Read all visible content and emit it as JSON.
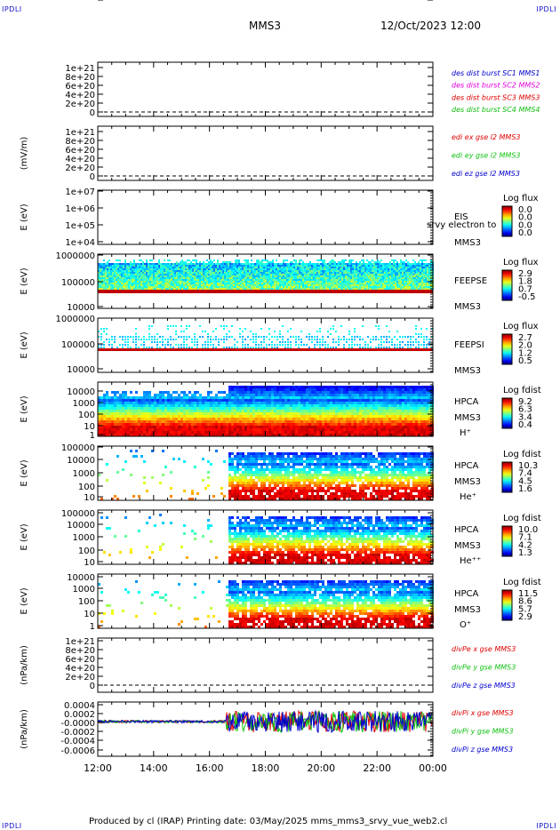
{
  "corners": {
    "tl": "IPDLI",
    "tr": "IPDLI",
    "bl": "IPDLI",
    "br": "IPDLI"
  },
  "header": {
    "spacecraft": "MMS3",
    "datetime": "12/Oct/2023 12:00"
  },
  "footer": {
    "text": "Produced by cl (IRAP)   Printing date: 03/May/2025   mms_mms3_srvy_vue_web2.cl"
  },
  "colors": {
    "red": "#e00000",
    "magenta": "#e000e0",
    "green": "#10c010",
    "blue": "#0000d0",
    "dash": "#000000"
  },
  "chart_data": {
    "type": "multi-panel",
    "x_axis": {
      "ticks": [
        "12:00",
        "14:00",
        "16:00",
        "18:00",
        "20:00",
        "22:00",
        "00:00"
      ],
      "range_hours": [
        12,
        24
      ]
    },
    "panels": [
      {
        "id": "p1",
        "ylabel": "",
        "yticks": [
          "1e+21",
          "8e+20",
          "6e+20",
          "4e+20",
          "2e+20",
          "0"
        ],
        "dashed_zero": true,
        "legend": [
          {
            "text": "des dist burst SC1 MMS1",
            "color": "#0000d0"
          },
          {
            "text": "des dist burst SC2 MMS2",
            "color": "#e000e0"
          },
          {
            "text": "des dist burst SC3 MMS3",
            "color": "#e00000"
          },
          {
            "text": "des dist burst SC4 MMS4",
            "color": "#10c010"
          }
        ]
      },
      {
        "id": "p2",
        "ylabel": "(mV/m)",
        "yticks": [
          "1e+21",
          "8e+20",
          "6e+20",
          "4e+20",
          "2e+20",
          "0"
        ],
        "dashed_zero": true,
        "legend": [
          {
            "text": "edi ex gse l2 MMS3",
            "color": "#e00000"
          },
          {
            "text": "edi ey gse l2 MMS3",
            "color": "#10c010"
          },
          {
            "text": "edi ez gse l2 MMS3",
            "color": "#0000d0"
          }
        ]
      },
      {
        "id": "p3",
        "ylabel": "E (eV)",
        "yticks": [
          "1e+07",
          "1e+06",
          "1e+05",
          "1e+04"
        ],
        "kind": "empty",
        "labels": [
          "EIS",
          "srvy electron to",
          "MMS3"
        ],
        "cbar_title": "Log flux",
        "cbar_ticks": [
          "0.0",
          "0.0",
          "0.0",
          "0.0"
        ]
      },
      {
        "id": "p4",
        "ylabel": "E (eV)",
        "yticks": [
          "1000000",
          "100000",
          "10000"
        ],
        "kind": "feepse",
        "labels": [
          "FEEPSE",
          "MMS3"
        ],
        "cbar_title": "Log flux",
        "cbar_ticks": [
          "2.9",
          "1.8",
          "0.7",
          "-0.5"
        ]
      },
      {
        "id": "p5",
        "ylabel": "E (eV)",
        "yticks": [
          "1000000",
          "100000",
          "10000"
        ],
        "kind": "feepsi",
        "labels": [
          "FEEPSI",
          "MMS3"
        ],
        "cbar_title": "Log flux",
        "cbar_ticks": [
          "2.7",
          "2.0",
          "1.2",
          "0.5"
        ]
      },
      {
        "id": "p6",
        "ylabel": "E (eV)",
        "yticks": [
          "10000",
          "1000",
          "100",
          "10",
          "1"
        ],
        "kind": "hpca_h",
        "labels": [
          "HPCA",
          "MMS3",
          "H⁺"
        ],
        "cbar_title": "Log fdist",
        "cbar_ticks": [
          "9.2",
          "6.3",
          "3.4",
          "0.4"
        ]
      },
      {
        "id": "p7",
        "ylabel": "E (eV)",
        "yticks": [
          "100000",
          "10000",
          "1000",
          "100",
          "10",
          "1"
        ],
        "kind": "hpca_he",
        "labels": [
          "HPCA",
          "MMS3",
          "He⁺"
        ],
        "cbar_title": "Log fdist",
        "cbar_ticks": [
          "10.3",
          "7.4",
          "4.5",
          "1.6"
        ]
      },
      {
        "id": "p8",
        "ylabel": "E (eV)",
        "yticks": [
          "100000",
          "10000",
          "1000",
          "100",
          "10",
          "1"
        ],
        "kind": "hpca_hepp",
        "labels": [
          "HPCA",
          "MMS3",
          "He⁺⁺"
        ],
        "cbar_title": "Log fdist",
        "cbar_ticks": [
          "10.0",
          "7.1",
          "4.2",
          "1.3"
        ]
      },
      {
        "id": "p9",
        "ylabel": "E (eV)",
        "yticks": [
          "10000",
          "1000",
          "100",
          "10",
          "1"
        ],
        "kind": "hpca_o",
        "labels": [
          "HPCA",
          "MMS3",
          "O⁺"
        ],
        "cbar_title": "Log fdist",
        "cbar_ticks": [
          "11.5",
          "8.6",
          "5.7",
          "2.9"
        ]
      },
      {
        "id": "p10",
        "ylabel": "(nPa/km)",
        "yticks": [
          "1e+21",
          "8e+20",
          "6e+20",
          "4e+20",
          "2e+20",
          "0"
        ],
        "dashed_zero": true,
        "legend": [
          {
            "text": "divPe x gse MMS3",
            "color": "#e00000"
          },
          {
            "text": "divPe y gse MMS3",
            "color": "#10c010"
          },
          {
            "text": "divPe z gse MMS3",
            "color": "#0000d0"
          }
        ]
      },
      {
        "id": "p11",
        "ylabel": "(nPa/km)",
        "yticks": [
          "0.0004",
          "0.0002",
          "-0.0000",
          "-0.0002",
          "-0.0004",
          "-0.0006"
        ],
        "kind": "divpi",
        "legend": [
          {
            "text": "divPi x gse MMS3",
            "color": "#e00000"
          },
          {
            "text": "divPi y gse MMS3",
            "color": "#10c010"
          },
          {
            "text": "divPi z gse MMS3",
            "color": "#0000d0"
          }
        ]
      }
    ]
  }
}
